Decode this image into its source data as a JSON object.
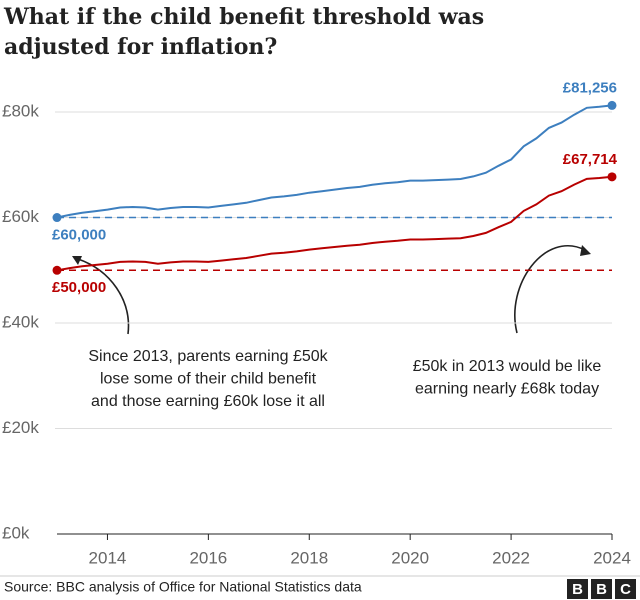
{
  "chart_data": {
    "type": "line",
    "title": [
      "What if the child benefit threshold was",
      "adjusted for inflation?"
    ],
    "x": [
      2013,
      2013.25,
      2013.5,
      2013.75,
      2014,
      2014.25,
      2014.5,
      2014.75,
      2015,
      2015.25,
      2015.5,
      2015.75,
      2016,
      2016.25,
      2016.5,
      2016.75,
      2017,
      2017.25,
      2017.5,
      2017.75,
      2018,
      2018.25,
      2018.5,
      2018.75,
      2019,
      2019.25,
      2019.5,
      2019.75,
      2020,
      2020.25,
      2020.5,
      2020.75,
      2021,
      2021.25,
      2021.5,
      2021.75,
      2022,
      2022.25,
      2022.5,
      2022.75,
      2023,
      2023.25,
      2023.5,
      2023.75,
      2024
    ],
    "series": [
      {
        "color": "#3d7fbf",
        "values": [
          60000,
          60500,
          60900,
          61200,
          61500,
          61900,
          62000,
          61900,
          61500,
          61800,
          62000,
          62000,
          61900,
          62200,
          62500,
          62800,
          63300,
          63800,
          64000,
          64300,
          64700,
          65000,
          65300,
          65600,
          65800,
          66200,
          66500,
          66700,
          67000,
          67000,
          67100,
          67200,
          67300,
          67800,
          68500,
          69800,
          71000,
          73500,
          75000,
          77000,
          78000,
          79500,
          80800,
          81000,
          81256
        ],
        "value_labels": {
          "0": "£60,000",
          "44": "£81,256"
        }
      },
      {
        "color": "#b80000",
        "values": [
          50000,
          50417,
          50750,
          51000,
          51250,
          51583,
          51667,
          51583,
          51250,
          51500,
          51667,
          51667,
          51583,
          51833,
          52083,
          52333,
          52750,
          53167,
          53333,
          53583,
          53917,
          54167,
          54417,
          54667,
          54833,
          55167,
          55417,
          55583,
          55833,
          55833,
          55917,
          56000,
          56083,
          56500,
          57083,
          58167,
          59167,
          61250,
          62500,
          64167,
          65000,
          66250,
          67333,
          67500,
          67714
        ],
        "value_labels": {
          "0": "£50,000",
          "44": "£67,714"
        }
      }
    ],
    "reference_lines": [
      {
        "value": 60000,
        "color": "#3d7fbf"
      },
      {
        "value": 50000,
        "color": "#b80000"
      }
    ],
    "xlim": [
      2013,
      2024
    ],
    "xticks": [
      2014,
      2016,
      2018,
      2020,
      2022,
      2024
    ],
    "ylim": [
      0,
      82000
    ],
    "yticks": [
      {
        "value": 0,
        "label": "£0k"
      },
      {
        "value": 20000,
        "label": "£20k"
      },
      {
        "value": 40000,
        "label": "£40k"
      },
      {
        "value": 60000,
        "label": "£60k"
      },
      {
        "value": 80000,
        "label": "£80k"
      }
    ],
    "grid": true,
    "annotations": [
      {
        "lines": [
          "Since 2013, parents earning £50k",
          "lose some of their child benefit",
          "and those earning £60k lose it all"
        ]
      },
      {
        "lines": [
          "£50k in 2013 would be like",
          "earning nearly £68k today"
        ]
      }
    ],
    "source": "Source: BBC analysis of Office for National Statistics data",
    "logo": [
      "B",
      "B",
      "C"
    ]
  }
}
